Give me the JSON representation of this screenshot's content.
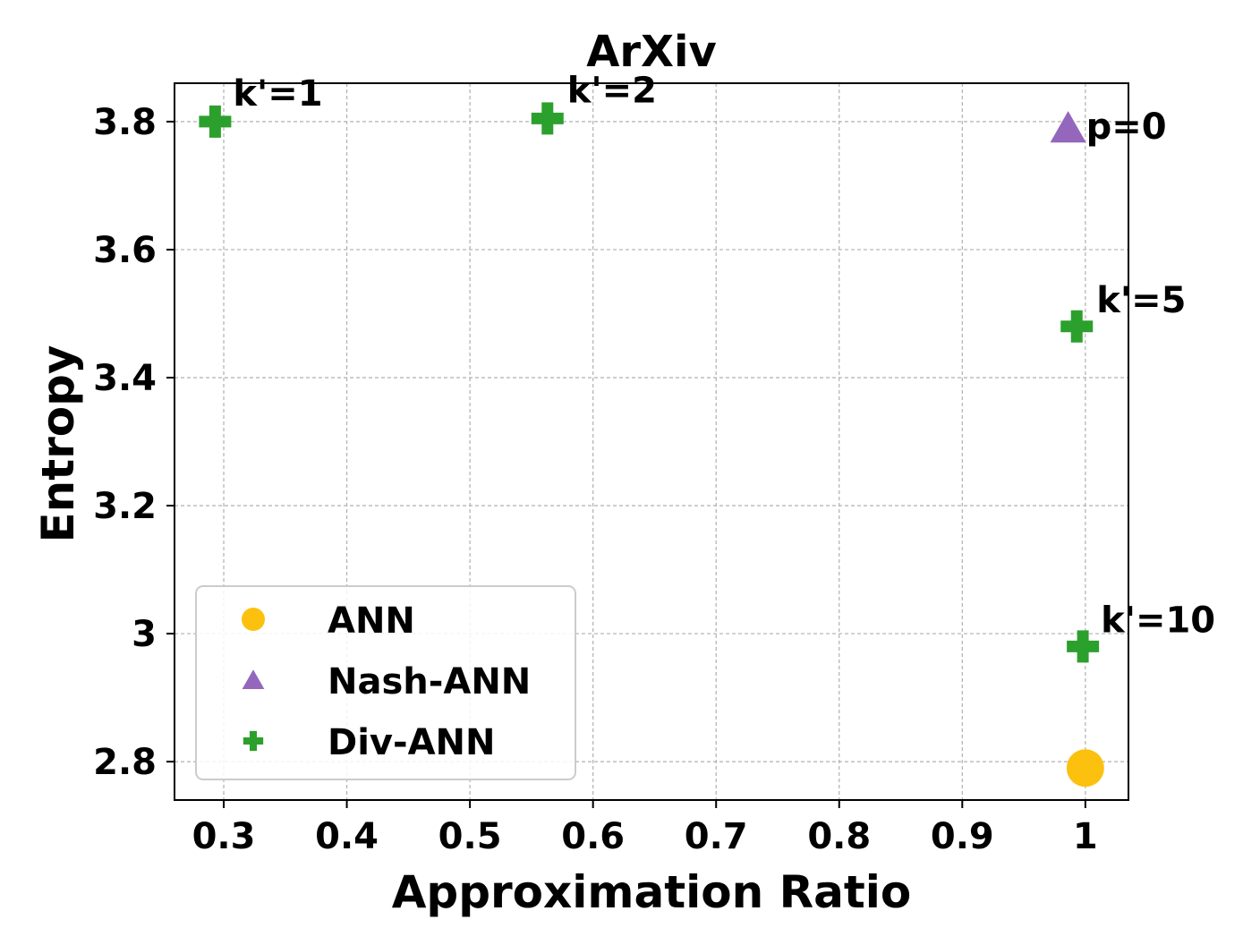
{
  "chart_data": {
    "type": "scatter",
    "title": "ArXiv",
    "xlabel": "Approximation Ratio",
    "ylabel": "Entropy",
    "xlim": [
      0.26,
      1.035
    ],
    "ylim": [
      2.74,
      3.86
    ],
    "xticks": [
      0.3,
      0.4,
      0.5,
      0.6,
      0.7,
      0.8,
      0.9,
      1.0
    ],
    "xtick_labels": [
      "0.3",
      "0.4",
      "0.5",
      "0.6",
      "0.7",
      "0.8",
      "0.9",
      "1"
    ],
    "yticks": [
      2.8,
      3.0,
      3.2,
      3.4,
      3.6,
      3.8
    ],
    "ytick_labels": [
      "2.8",
      "3",
      "3.2",
      "3.4",
      "3.6",
      "3.8"
    ],
    "grid": true,
    "legend_position": "lower-left",
    "series": [
      {
        "name": "ANN",
        "marker": "circle",
        "color": "#FCC10F",
        "points": [
          {
            "x": 1.0,
            "y": 2.79,
            "label": ""
          }
        ]
      },
      {
        "name": "Nash-ANN",
        "marker": "triangle",
        "color": "#9467BD",
        "points": [
          {
            "x": 0.986,
            "y": 3.79,
            "label": "p=0"
          }
        ]
      },
      {
        "name": "Div-ANN",
        "marker": "plus",
        "color": "#2CA02C",
        "points": [
          {
            "x": 0.293,
            "y": 3.8,
            "label": "k'=1"
          },
          {
            "x": 0.563,
            "y": 3.805,
            "label": "k'=2"
          },
          {
            "x": 0.993,
            "y": 3.48,
            "label": "k'=5"
          },
          {
            "x": 0.998,
            "y": 2.98,
            "label": "k'=10"
          }
        ]
      }
    ]
  }
}
